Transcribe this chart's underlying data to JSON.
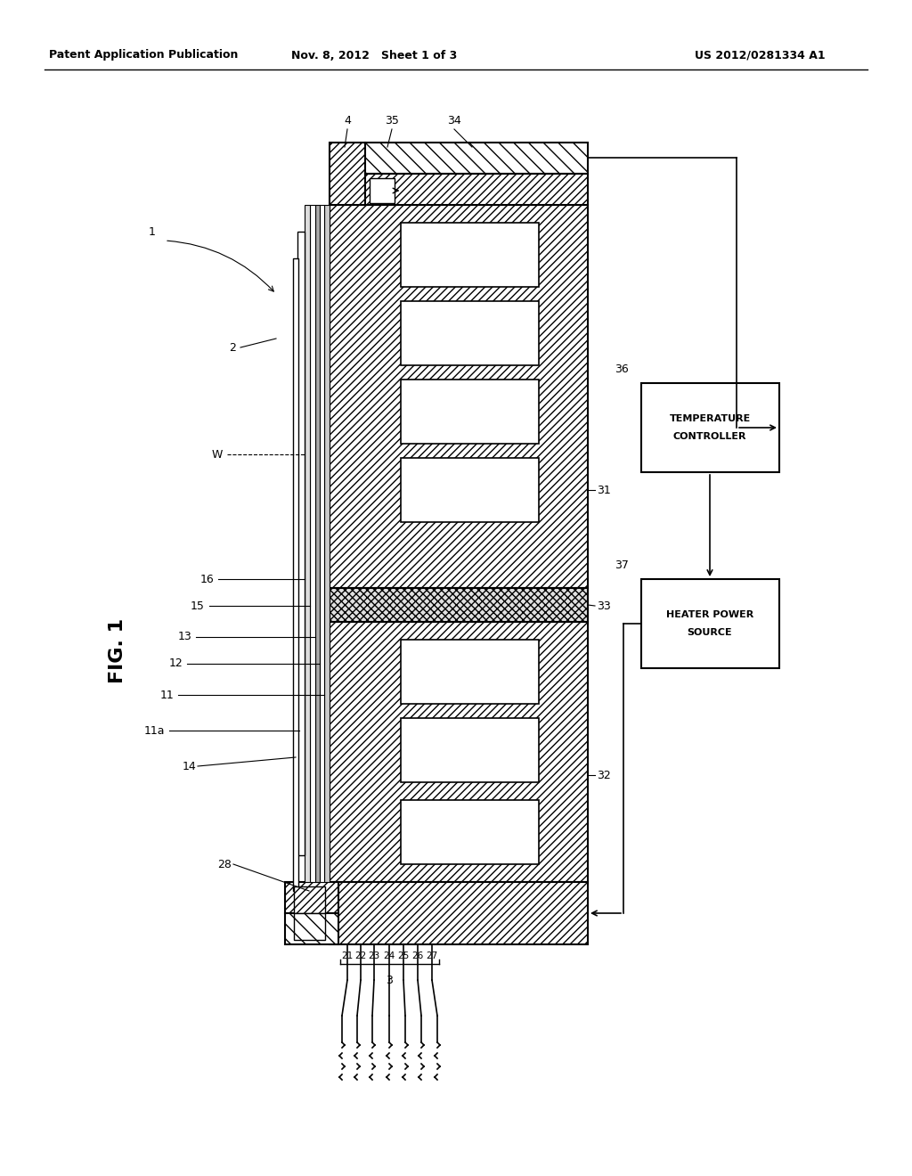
{
  "header_left": "Patent Application Publication",
  "header_mid": "Nov. 8, 2012   Sheet 1 of 3",
  "header_right": "US 2012/0281334 A1",
  "fig_label": "FIG. 1",
  "bg_color": "#ffffff"
}
